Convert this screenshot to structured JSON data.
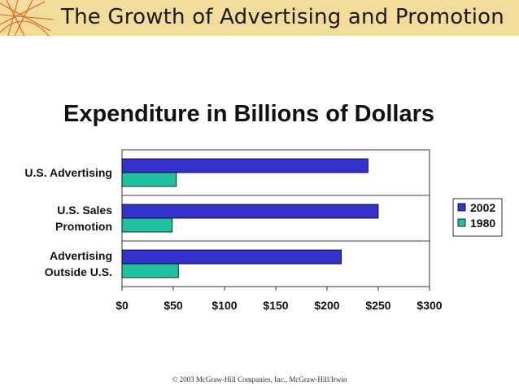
{
  "header": {
    "title": "The Growth of Advertising and Promotion"
  },
  "footer": {
    "copyright": "© 2003 McGraw-Hill Companies, Inc., McGraw-Hill/Irwin"
  },
  "chart_data": {
    "type": "bar",
    "orientation": "horizontal",
    "title": "Expenditure in Billions of Dollars",
    "categories": [
      [
        "U.S. Advertising"
      ],
      [
        "U.S. Sales",
        "Promotion"
      ],
      [
        "Advertising",
        "Outside U.S."
      ]
    ],
    "series": [
      {
        "name": "2002",
        "color": "#3333cc",
        "values": [
          240,
          250,
          214
        ]
      },
      {
        "name": "1980",
        "color": "#21c1a0",
        "values": [
          53,
          49,
          55
        ]
      }
    ],
    "xlim": [
      0,
      300
    ],
    "xticks": [
      "$0",
      "$50",
      "$100",
      "$150",
      "$200",
      "$250",
      "$300"
    ],
    "grid": "horizontal category separators",
    "legend": "right"
  }
}
